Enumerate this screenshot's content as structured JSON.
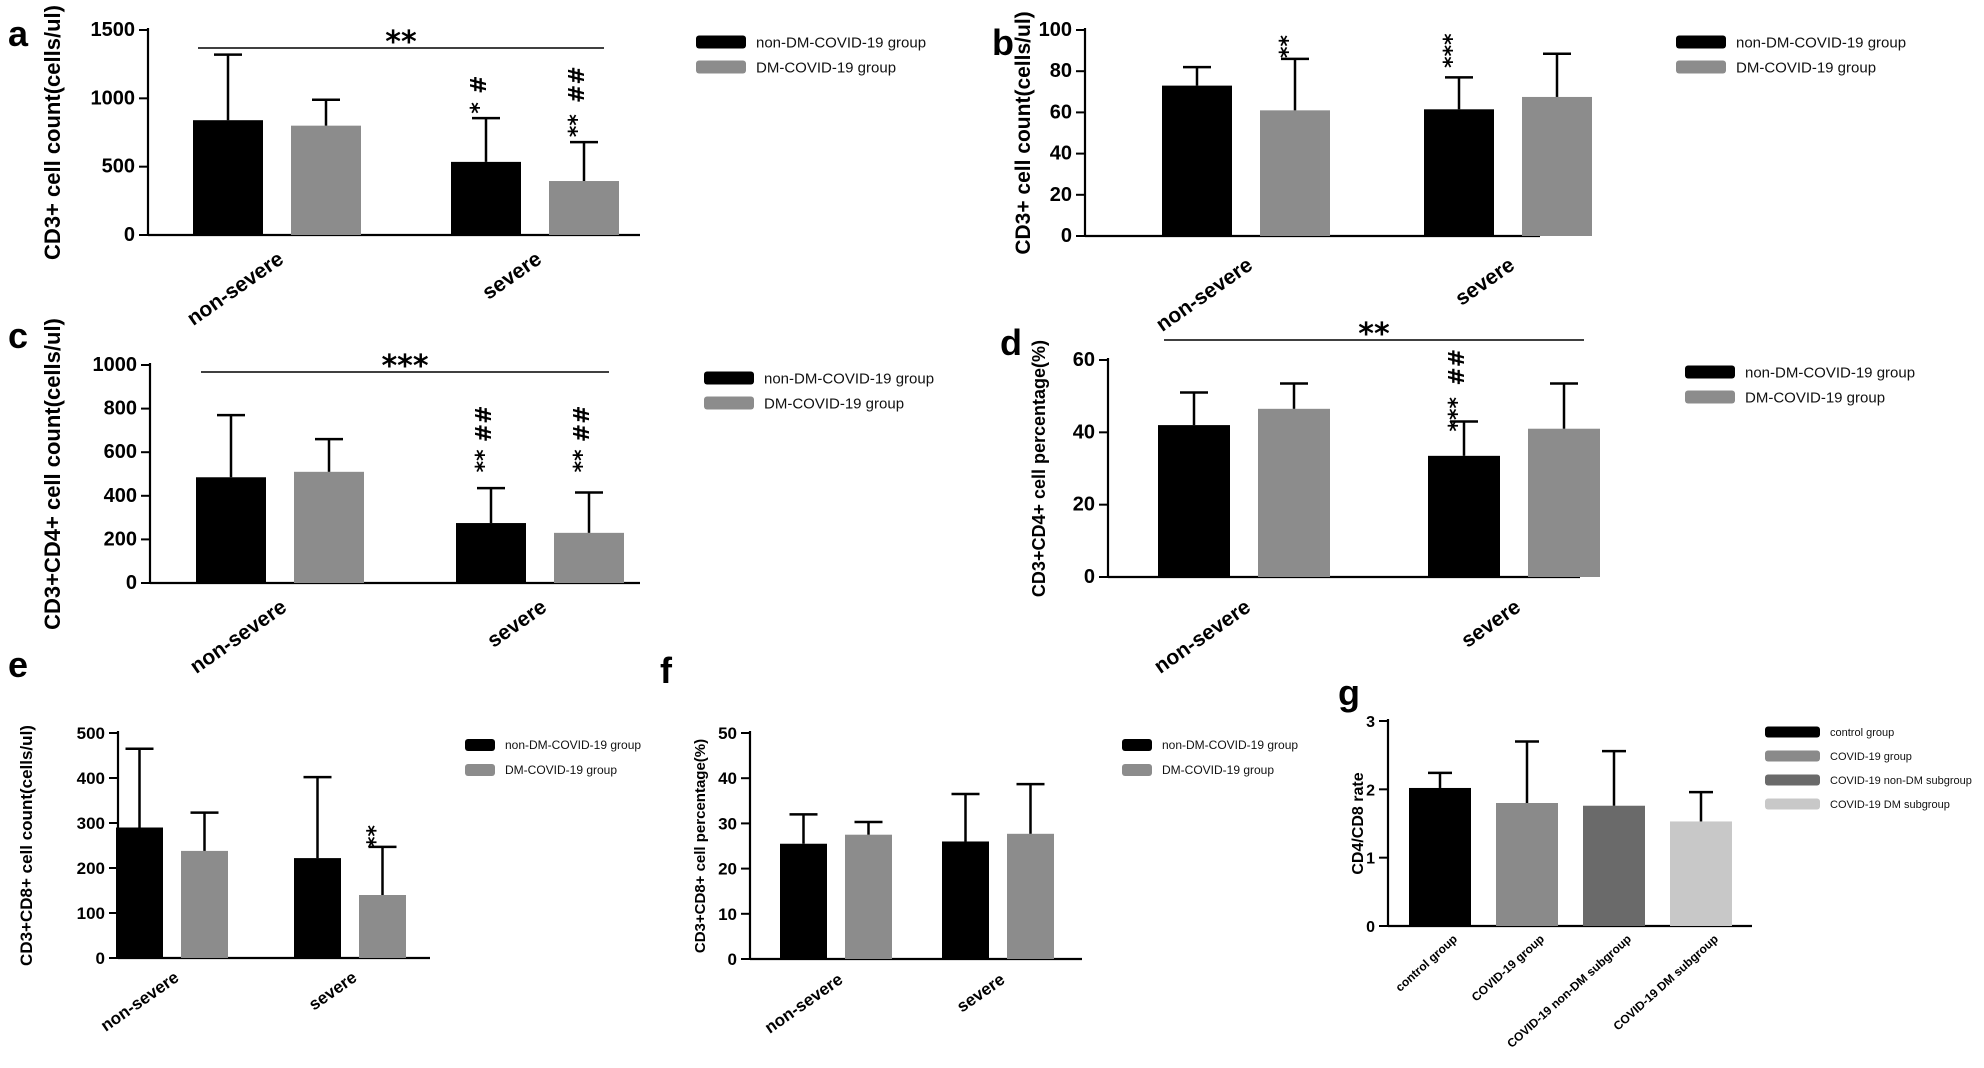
{
  "colors": {
    "black_series": "#000000",
    "gray_series": "#8c8c8c",
    "axis": "#000000"
  },
  "chart_data": [
    {
      "id": "a",
      "type": "bar",
      "panel_label": "a",
      "ylabel": "CD3+  cell count(cells/ul)",
      "yticks": [
        0,
        500,
        1000,
        1500
      ],
      "ylim": [
        0,
        1500
      ],
      "categories": [
        "non-severe",
        "severe"
      ],
      "series": [
        {
          "name": "non-DM-COVID-19 group",
          "color": "#000000",
          "values": [
            840,
            535
          ],
          "errors": [
            480,
            320
          ]
        },
        {
          "name": "DM-COVID-19 group",
          "color": "#8c8c8c",
          "values": [
            800,
            395
          ],
          "errors": [
            190,
            285
          ]
        }
      ],
      "annotations": [
        {
          "text": "**",
          "kind": "bracket",
          "from": [
            0,
            0
          ],
          "to": [
            1,
            1
          ],
          "y": 1370
        },
        {
          "text": "*",
          "series": 0,
          "category": 1,
          "y": 930
        },
        {
          "text": "#",
          "series": 0,
          "category": 1,
          "y": 1100
        },
        {
          "text": "**",
          "series": 1,
          "category": 1,
          "y": 800
        },
        {
          "text": "##",
          "series": 1,
          "category": 1,
          "y": 1100
        }
      ]
    },
    {
      "id": "b",
      "type": "bar",
      "panel_label": "b",
      "ylabel": "CD3+  cell count(cells/ul)",
      "yticks": [
        0,
        20,
        40,
        60,
        80,
        100
      ],
      "ylim": [
        0,
        100
      ],
      "categories": [
        "non-severe",
        "severe"
      ],
      "series": [
        {
          "name": "non-DM-COVID-19 group",
          "color": "#000000",
          "values": [
            73,
            61.5
          ],
          "errors": [
            9,
            15.5
          ]
        },
        {
          "name": "DM-COVID-19 group",
          "color": "#8c8c8c",
          "values": [
            61,
            67.5
          ],
          "errors": [
            25,
            21
          ]
        }
      ],
      "annotations": [
        {
          "text": "**",
          "series": 1,
          "category": 0,
          "y": 92
        },
        {
          "text": "***",
          "series": 0,
          "category": 1,
          "y": 90
        }
      ]
    },
    {
      "id": "c",
      "type": "bar",
      "panel_label": "c",
      "ylabel": "CD3+CD4+  cell count(cells/ul)",
      "yticks": [
        0,
        200,
        400,
        600,
        800,
        1000
      ],
      "ylim": [
        0,
        1000
      ],
      "categories": [
        "non-severe",
        "severe"
      ],
      "series": [
        {
          "name": "non-DM-COVID-19 group",
          "color": "#000000",
          "values": [
            485,
            275
          ],
          "errors": [
            285,
            160
          ]
        },
        {
          "name": "DM-COVID-19 group",
          "color": "#8c8c8c",
          "values": [
            510,
            230
          ],
          "errors": [
            150,
            185
          ]
        }
      ],
      "annotations": [
        {
          "text": "***",
          "kind": "bracket",
          "from": [
            0,
            0
          ],
          "to": [
            1,
            1
          ],
          "y": 960
        },
        {
          "text": "**",
          "series": 0,
          "category": 1,
          "y": 560
        },
        {
          "text": "##",
          "series": 0,
          "category": 1,
          "y": 730
        },
        {
          "text": "**",
          "series": 1,
          "category": 1,
          "y": 560
        },
        {
          "text": "##",
          "series": 1,
          "category": 1,
          "y": 730
        }
      ]
    },
    {
      "id": "d",
      "type": "bar",
      "panel_label": "d",
      "ylabel": "CD3+CD4+ cell percentage(%)",
      "yticks": [
        0,
        20,
        40,
        60
      ],
      "ylim": [
        0,
        60
      ],
      "categories": [
        "non-severe",
        "severe"
      ],
      "series": [
        {
          "name": "non-DM-COVID-19 group",
          "color": "#000000",
          "values": [
            42,
            33.5
          ],
          "errors": [
            9,
            9.5
          ]
        },
        {
          "name": "DM-COVID-19 group",
          "color": "#8c8c8c",
          "values": [
            46.5,
            41
          ],
          "errors": [
            7,
            12.5
          ]
        }
      ],
      "annotations": [
        {
          "text": "**",
          "kind": "bracket",
          "from": [
            0,
            0
          ],
          "to": [
            1,
            1
          ],
          "y": 65
        },
        {
          "text": "***",
          "series": 0,
          "category": 1,
          "y": 45
        },
        {
          "text": "##",
          "series": 0,
          "category": 1,
          "y": 58
        }
      ]
    },
    {
      "id": "e",
      "type": "bar",
      "panel_label": "e",
      "ylabel": "CD3+CD8+  cell count(cells/ul)",
      "yticks": [
        0,
        100,
        200,
        300,
        400,
        500
      ],
      "ylim": [
        0,
        500
      ],
      "categories": [
        "non-severe",
        "severe"
      ],
      "series": [
        {
          "name": "non-DM-COVID-19 group",
          "color": "#000000",
          "values": [
            290,
            222
          ],
          "errors": [
            175,
            180
          ]
        },
        {
          "name": "DM-COVID-19 group",
          "color": "#8c8c8c",
          "values": [
            238,
            140
          ],
          "errors": [
            85,
            107
          ]
        }
      ],
      "annotations": [
        {
          "text": "**",
          "series": 1,
          "category": 1,
          "y": 270
        }
      ]
    },
    {
      "id": "f",
      "type": "bar",
      "panel_label": "f",
      "ylabel": "CD3+CD8+ cell percentage(%)",
      "yticks": [
        0,
        10,
        20,
        30,
        40,
        50
      ],
      "ylim": [
        0,
        50
      ],
      "categories": [
        "non-severe",
        "severe"
      ],
      "series": [
        {
          "name": "non-DM-COVID-19 group",
          "color": "#000000",
          "values": [
            25.5,
            26
          ],
          "errors": [
            6.5,
            10.5
          ]
        },
        {
          "name": "DM-COVID-19 group",
          "color": "#8c8c8c",
          "values": [
            27.5,
            27.7
          ],
          "errors": [
            2.8,
            11
          ]
        }
      ],
      "annotations": []
    },
    {
      "id": "g",
      "type": "bar",
      "panel_label": "g",
      "ylabel": "CD4/CD8 rate",
      "yticks": [
        0,
        1,
        2,
        3
      ],
      "ylim": [
        0,
        3
      ],
      "categories": [
        "control group",
        "COVID-19 group",
        "COVID-19 non-DM subgroup",
        "COVID-19 DM subgroup"
      ],
      "series": [
        {
          "name": "control group",
          "color": "#000000"
        },
        {
          "name": "COVID-19 group",
          "color": "#8a8a8a"
        },
        {
          "name": "COVID-19 non-DM subgroup",
          "color": "#6a6a6a"
        },
        {
          "name": "COVID-19 DM subgroup",
          "color": "#c8c8c8"
        }
      ],
      "values": [
        2.02,
        1.8,
        1.76,
        1.53
      ],
      "errors": [
        0.22,
        0.9,
        0.8,
        0.43
      ],
      "annotations": []
    }
  ]
}
